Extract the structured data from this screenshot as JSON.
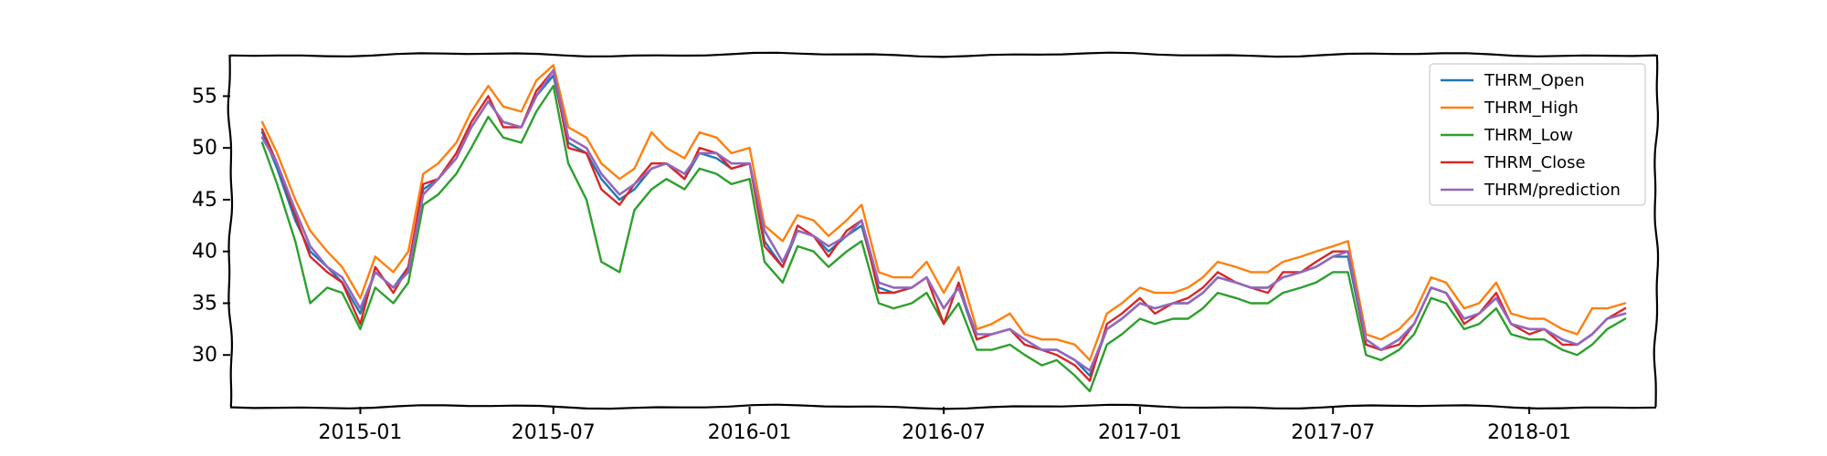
{
  "chart_data": {
    "type": "line",
    "title": "",
    "xlabel": "",
    "ylabel": "",
    "xlim": [
      "2014-09-01",
      "2018-04-30"
    ],
    "ylim": [
      25,
      59
    ],
    "yticks": [
      30,
      35,
      40,
      45,
      50,
      55
    ],
    "xticks": [
      "2015-01",
      "2015-07",
      "2016-01",
      "2016-07",
      "2017-01",
      "2017-07",
      "2018-01"
    ],
    "grid": false,
    "legend_position": "top-right",
    "style": "xkcd-sketch",
    "x": [
      "2014-10-01",
      "2014-10-15",
      "2014-11-01",
      "2014-11-15",
      "2014-12-01",
      "2014-12-15",
      "2015-01-01",
      "2015-01-15",
      "2015-02-01",
      "2015-02-15",
      "2015-03-01",
      "2015-03-15",
      "2015-04-01",
      "2015-04-15",
      "2015-05-01",
      "2015-05-15",
      "2015-06-01",
      "2015-06-15",
      "2015-07-01",
      "2015-07-15",
      "2015-08-01",
      "2015-08-15",
      "2015-09-01",
      "2015-09-15",
      "2015-10-01",
      "2015-10-15",
      "2015-11-01",
      "2015-11-15",
      "2015-12-01",
      "2015-12-15",
      "2016-01-01",
      "2016-01-15",
      "2016-02-01",
      "2016-02-15",
      "2016-03-01",
      "2016-03-15",
      "2016-04-01",
      "2016-04-15",
      "2016-05-01",
      "2016-05-15",
      "2016-06-01",
      "2016-06-15",
      "2016-07-01",
      "2016-07-15",
      "2016-08-01",
      "2016-08-15",
      "2016-09-01",
      "2016-09-15",
      "2016-10-01",
      "2016-10-15",
      "2016-11-01",
      "2016-11-15",
      "2016-12-01",
      "2016-12-15",
      "2017-01-01",
      "2017-01-15",
      "2017-02-01",
      "2017-02-15",
      "2017-03-01",
      "2017-03-15",
      "2017-04-01",
      "2017-04-15",
      "2017-05-01",
      "2017-05-15",
      "2017-06-01",
      "2017-06-15",
      "2017-07-01",
      "2017-07-15",
      "2017-08-01",
      "2017-08-15",
      "2017-09-01",
      "2017-09-15",
      "2017-10-01",
      "2017-10-15",
      "2017-11-01",
      "2017-11-15",
      "2017-12-01",
      "2017-12-15",
      "2018-01-01",
      "2018-01-15",
      "2018-02-01",
      "2018-02-15",
      "2018-03-01",
      "2018-03-15",
      "2018-04-01"
    ],
    "series": [
      {
        "name": "THRM_Open",
        "color": "#1f77b4",
        "values": [
          51.5,
          48.0,
          43.0,
          40.0,
          38.5,
          37.0,
          34.0,
          38.0,
          36.5,
          38.5,
          46.0,
          47.0,
          49.0,
          52.0,
          54.5,
          52.5,
          52.0,
          55.0,
          57.0,
          50.5,
          49.5,
          47.0,
          45.0,
          46.0,
          48.0,
          48.5,
          47.0,
          49.5,
          49.0,
          48.0,
          48.5,
          41.0,
          38.5,
          42.0,
          41.5,
          40.0,
          41.5,
          42.5,
          36.5,
          36.0,
          36.5,
          37.5,
          34.5,
          36.5,
          31.5,
          32.0,
          32.5,
          31.0,
          30.5,
          30.5,
          29.5,
          28.0,
          32.5,
          33.5,
          35.0,
          34.5,
          35.0,
          35.0,
          36.0,
          37.5,
          37.0,
          36.5,
          36.5,
          37.5,
          38.0,
          38.5,
          39.5,
          39.5,
          31.0,
          30.5,
          31.5,
          33.0,
          36.5,
          36.0,
          33.5,
          34.0,
          35.5,
          33.0,
          32.5,
          32.5,
          31.5,
          31.0,
          32.0,
          33.5,
          34.0
        ]
      },
      {
        "name": "THRM_High",
        "color": "#ff7f0e",
        "values": [
          52.5,
          49.5,
          45.0,
          42.0,
          40.0,
          38.5,
          35.5,
          39.5,
          38.0,
          40.0,
          47.5,
          48.5,
          50.5,
          53.5,
          56.0,
          54.0,
          53.5,
          56.5,
          58.0,
          52.0,
          51.0,
          48.5,
          47.0,
          48.0,
          51.5,
          50.0,
          49.0,
          51.5,
          51.0,
          49.5,
          50.0,
          42.5,
          41.0,
          43.5,
          43.0,
          41.5,
          43.0,
          44.5,
          38.0,
          37.5,
          37.5,
          39.0,
          36.0,
          38.5,
          32.5,
          33.0,
          34.0,
          32.0,
          31.5,
          31.5,
          31.0,
          29.5,
          34.0,
          35.0,
          36.5,
          36.0,
          36.0,
          36.5,
          37.5,
          39.0,
          38.5,
          38.0,
          38.0,
          39.0,
          39.5,
          40.0,
          40.5,
          41.0,
          32.0,
          31.5,
          32.5,
          34.0,
          37.5,
          37.0,
          34.5,
          35.0,
          37.0,
          34.0,
          33.5,
          33.5,
          32.5,
          32.0,
          34.5,
          34.5,
          35.0
        ]
      },
      {
        "name": "THRM_Low",
        "color": "#2ca02c",
        "values": [
          50.5,
          46.5,
          41.0,
          35.0,
          36.5,
          36.0,
          32.5,
          36.5,
          35.0,
          37.0,
          44.5,
          45.5,
          47.5,
          50.0,
          53.0,
          51.0,
          50.5,
          53.5,
          56.0,
          48.5,
          45.0,
          39.0,
          38.0,
          44.0,
          46.0,
          47.0,
          46.0,
          48.0,
          47.5,
          46.5,
          47.0,
          39.0,
          37.0,
          40.5,
          40.0,
          38.5,
          40.0,
          41.0,
          35.0,
          34.5,
          35.0,
          36.0,
          33.0,
          35.0,
          30.5,
          30.5,
          31.0,
          30.0,
          29.0,
          29.5,
          28.0,
          26.5,
          31.0,
          32.0,
          33.5,
          33.0,
          33.5,
          33.5,
          34.5,
          36.0,
          35.5,
          35.0,
          35.0,
          36.0,
          36.5,
          37.0,
          38.0,
          38.0,
          30.0,
          29.5,
          30.5,
          32.0,
          35.5,
          35.0,
          32.5,
          33.0,
          34.5,
          32.0,
          31.5,
          31.5,
          30.5,
          30.0,
          31.0,
          32.5,
          33.5
        ]
      },
      {
        "name": "THRM_Close",
        "color": "#d62728",
        "values": [
          51.8,
          48.5,
          43.5,
          39.5,
          38.0,
          37.0,
          33.0,
          38.5,
          36.0,
          38.5,
          46.5,
          47.0,
          49.5,
          52.5,
          55.0,
          52.0,
          52.0,
          55.5,
          57.5,
          50.0,
          49.5,
          46.0,
          44.5,
          46.5,
          48.5,
          48.5,
          47.0,
          50.0,
          49.5,
          48.0,
          48.5,
          40.5,
          38.5,
          42.5,
          41.5,
          39.5,
          42.0,
          43.0,
          36.0,
          36.0,
          36.5,
          37.5,
          33.0,
          37.0,
          31.5,
          32.0,
          32.5,
          31.0,
          30.5,
          30.0,
          29.0,
          27.5,
          33.0,
          34.0,
          35.5,
          34.0,
          35.0,
          35.5,
          36.5,
          38.0,
          37.0,
          36.5,
          36.0,
          38.0,
          38.0,
          39.0,
          40.0,
          40.0,
          31.0,
          30.5,
          31.0,
          33.0,
          36.5,
          36.0,
          33.0,
          34.0,
          36.0,
          33.0,
          32.0,
          32.5,
          31.0,
          31.0,
          32.0,
          33.5,
          34.5
        ]
      },
      {
        "name": "THRM/prediction",
        "color": "#9467bd",
        "values": [
          51.0,
          48.5,
          44.0,
          40.5,
          38.5,
          37.5,
          34.5,
          38.0,
          36.5,
          38.0,
          45.5,
          47.0,
          49.0,
          52.0,
          54.5,
          52.5,
          52.0,
          55.0,
          57.5,
          51.0,
          50.0,
          47.5,
          45.5,
          46.5,
          48.0,
          48.5,
          47.5,
          49.5,
          49.5,
          48.5,
          48.5,
          42.0,
          39.0,
          42.0,
          41.5,
          40.5,
          41.5,
          43.0,
          37.0,
          36.5,
          36.5,
          37.5,
          34.5,
          36.5,
          32.0,
          32.0,
          32.5,
          31.5,
          30.5,
          30.5,
          29.5,
          28.5,
          32.5,
          33.5,
          35.0,
          34.5,
          35.0,
          35.0,
          36.0,
          37.5,
          37.0,
          36.5,
          36.5,
          37.5,
          38.0,
          38.5,
          39.5,
          40.0,
          31.5,
          30.5,
          31.5,
          33.0,
          36.5,
          36.0,
          33.5,
          34.0,
          35.5,
          33.0,
          32.5,
          32.5,
          31.5,
          31.0,
          32.0,
          33.5,
          34.0
        ]
      }
    ]
  }
}
